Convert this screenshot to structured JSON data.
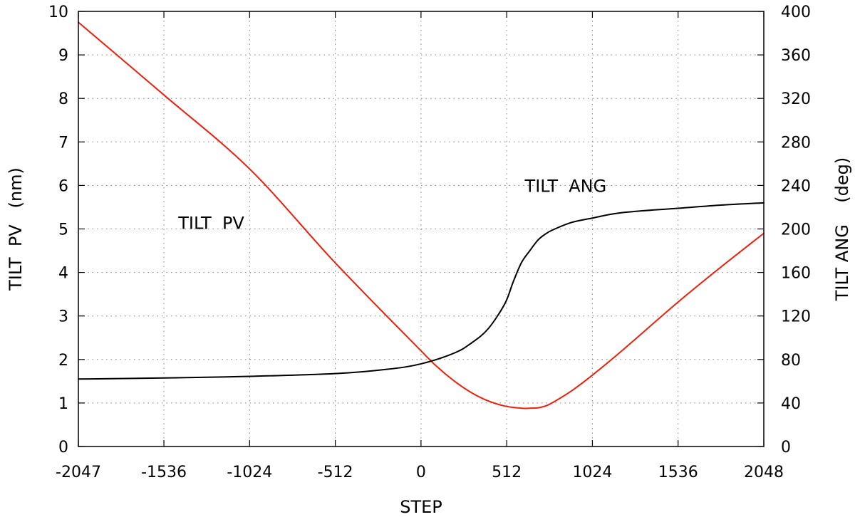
{
  "chart_data": {
    "type": "line",
    "xlabel": "STEP",
    "ylabel_left": "TILT  PV   (nm)",
    "ylabel_right": "TILT ANG    (deg)",
    "xlim": [
      -2047,
      2048
    ],
    "ylim_left": [
      0,
      10
    ],
    "ylim_right": [
      0,
      400
    ],
    "x_ticks": [
      -2047,
      -1536,
      -1024,
      -512,
      0,
      512,
      1024,
      1536,
      2048
    ],
    "y_left_ticks": [
      0,
      1,
      2,
      3,
      4,
      5,
      6,
      7,
      8,
      9,
      10
    ],
    "y_right_ticks": [
      0,
      40,
      80,
      120,
      160,
      200,
      240,
      280,
      320,
      360,
      400
    ],
    "grid": true,
    "annotations": [
      {
        "text": "TILT  PV",
        "x": -1450,
        "y": 5.0,
        "axis": "left"
      },
      {
        "text": "TILT  ANG",
        "x": 620,
        "y": 5.85,
        "axis": "left"
      }
    ],
    "series": [
      {
        "name": "TILT  PV",
        "axis": "left",
        "color": "#e8200d",
        "x": [
          -2047,
          -1536,
          -1024,
          -512,
          0,
          100,
          200,
          300,
          400,
          500,
          600,
          650,
          700,
          750,
          800,
          900,
          1024,
          1200,
          1536,
          1800,
          2048
        ],
        "y": [
          9.75,
          8.08,
          6.38,
          4.22,
          2.2,
          1.82,
          1.5,
          1.24,
          1.05,
          0.93,
          0.88,
          0.88,
          0.89,
          0.94,
          1.04,
          1.28,
          1.64,
          2.2,
          3.32,
          4.15,
          4.9
        ]
      },
      {
        "name": "TILT  ANG",
        "axis": "right",
        "color": "#000000",
        "x": [
          -2047,
          -1536,
          -1024,
          -512,
          -200,
          0,
          200,
          300,
          400,
          500,
          550,
          600,
          650,
          700,
          750,
          800,
          900,
          1024,
          1200,
          1536,
          1800,
          2048
        ],
        "y": [
          62,
          63,
          64.5,
          67,
          71,
          76,
          86,
          95,
          108,
          131,
          151,
          169,
          180,
          190,
          196,
          200,
          206,
          210,
          215,
          219,
          222,
          224
        ]
      }
    ]
  }
}
